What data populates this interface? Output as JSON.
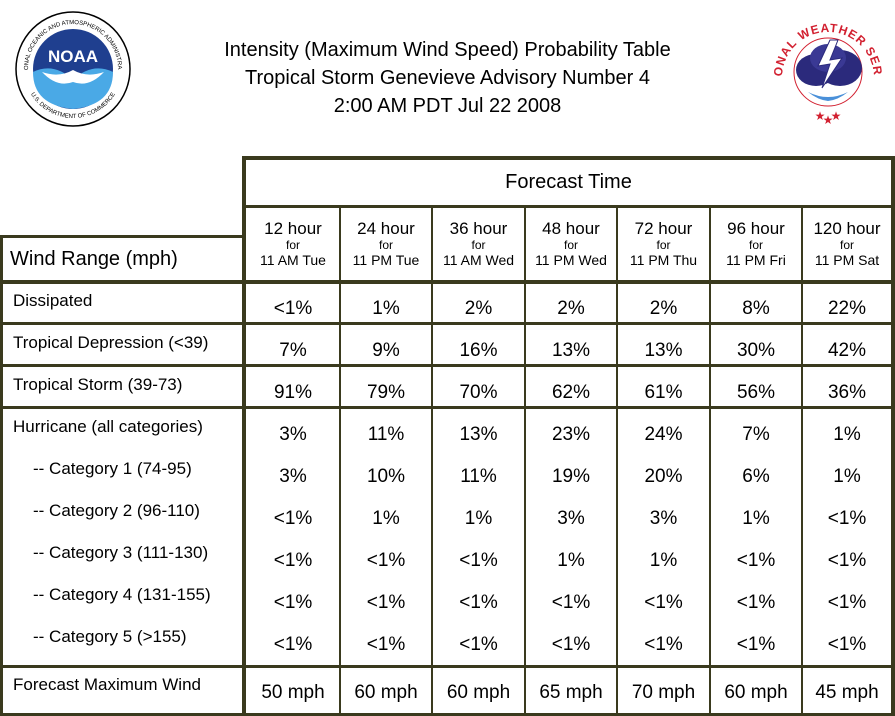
{
  "header": {
    "title_line1": "Intensity (Maximum Wind Speed) Probability Table",
    "title_line2": "Tropical Storm Genevieve Advisory Number 4",
    "title_line3": "2:00 AM PDT Jul 22 2008"
  },
  "logos": {
    "noaa_text": "NOAA",
    "noaa_ring_top": "NATIONAL OCEANIC AND ATMOSPHERIC ADMINISTRATION",
    "noaa_ring_bottom": "U.S. DEPARTMENT OF COMMERCE",
    "nws_ring": "NATIONAL WEATHER SERVICE"
  },
  "table": {
    "forecast_time_label": "Forecast Time",
    "wind_range_label": "Wind Range (mph)",
    "columns": [
      {
        "hours": "12 hour",
        "for": "for",
        "when": "11 AM Tue"
      },
      {
        "hours": "24 hour",
        "for": "for",
        "when": "11 PM Tue"
      },
      {
        "hours": "36 hour",
        "for": "for",
        "when": "11 AM Wed"
      },
      {
        "hours": "48 hour",
        "for": "for",
        "when": "11 PM Wed"
      },
      {
        "hours": "72 hour",
        "for": "for",
        "when": "11 PM Thu"
      },
      {
        "hours": "96 hour",
        "for": "for",
        "when": "11 PM Fri"
      },
      {
        "hours": "120 hour",
        "for": "for",
        "when": "11 PM Sat"
      }
    ],
    "rows": [
      {
        "label": "Dissipated",
        "values": [
          "<1%",
          "1%",
          "2%",
          "2%",
          "2%",
          "8%",
          "22%"
        ]
      },
      {
        "label": "Tropical Depression (<39)",
        "values": [
          "7%",
          "9%",
          "16%",
          "13%",
          "13%",
          "30%",
          "42%"
        ]
      },
      {
        "label": "Tropical Storm (39-73)",
        "values": [
          "91%",
          "79%",
          "70%",
          "62%",
          "61%",
          "56%",
          "36%"
        ]
      },
      {
        "label": "Hurricane (all categories)",
        "values": [
          "3%",
          "11%",
          "13%",
          "23%",
          "24%",
          "7%",
          "1%"
        ]
      },
      {
        "label": "-- Category 1 (74-95)",
        "values": [
          "3%",
          "10%",
          "11%",
          "19%",
          "20%",
          "6%",
          "1%"
        ]
      },
      {
        "label": "-- Category 2 (96-110)",
        "values": [
          "<1%",
          "1%",
          "1%",
          "3%",
          "3%",
          "1%",
          "<1%"
        ]
      },
      {
        "label": "-- Category 3 (111-130)",
        "values": [
          "<1%",
          "<1%",
          "<1%",
          "1%",
          "1%",
          "<1%",
          "<1%"
        ]
      },
      {
        "label": "-- Category 4 (131-155)",
        "values": [
          "<1%",
          "<1%",
          "<1%",
          "<1%",
          "<1%",
          "<1%",
          "<1%"
        ]
      },
      {
        "label": "-- Category 5 (>155)",
        "values": [
          "<1%",
          "<1%",
          "<1%",
          "<1%",
          "<1%",
          "<1%",
          "<1%"
        ]
      },
      {
        "label": "Forecast Maximum Wind",
        "values": [
          "50 mph",
          "60 mph",
          "60 mph",
          "65 mph",
          "70 mph",
          "60 mph",
          "45 mph"
        ]
      }
    ]
  },
  "colors": {
    "border": "#3a3a1e",
    "noaa_blue": "#1f3f8f",
    "nws_red": "#d22030"
  }
}
